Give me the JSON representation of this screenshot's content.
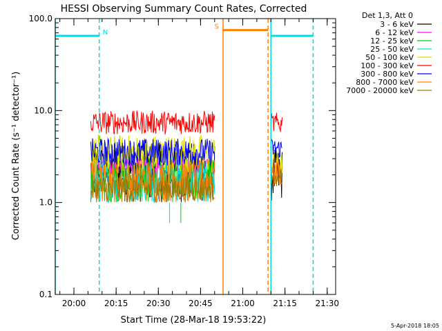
{
  "chart_data": {
    "type": "line",
    "title": "HESSI Observing Summary Count Rates, Corrected",
    "xlabel": "Start Time (28-Mar-18 19:53:22)",
    "ylabel": "Corrected Count Rate (s⁻¹ detector⁻¹)",
    "yscale": "log",
    "ylim": [
      0.1,
      100.0
    ],
    "xlim": [
      "19:53:22",
      "21:33:00"
    ],
    "x_tick_labels": [
      "20:00",
      "20:15",
      "20:30",
      "20:45",
      "21:00",
      "21:15",
      "21:30"
    ],
    "y_tick_labels": [
      "0.1",
      "1.0",
      "10.0",
      "100.0"
    ],
    "legend_title": "Det 1,3, Att 0",
    "legend_position": "right",
    "timestamp": "5-Apr-2018 18:05",
    "flags": [
      {
        "label": "N",
        "color": "#00dddd",
        "start": "19:53:22",
        "end": "20:09",
        "level": 65
      },
      {
        "label": "S",
        "color": "#ff7f00",
        "start": "20:53",
        "end": "21:09",
        "level": 75
      },
      {
        "label": "",
        "color": "#00dddd",
        "start": "21:10",
        "end": "21:25",
        "level": 65
      }
    ],
    "series": [
      {
        "name": "3 - 6 keV",
        "color": "#000000",
        "segments": [
          {
            "start": "20:06",
            "end": "20:50",
            "low": 1.0,
            "high": 4.5
          },
          {
            "start": "21:10",
            "end": "21:14",
            "low": 1.0,
            "high": 4.0
          }
        ]
      },
      {
        "name": "6 - 12 keV",
        "color": "#ff00ff",
        "segments": [
          {
            "start": "20:06",
            "end": "20:50",
            "low": 2.0,
            "high": 3.0
          }
        ]
      },
      {
        "name": "12 - 25 keV",
        "color": "#00cc00",
        "segments": [
          {
            "start": "20:06",
            "end": "20:50",
            "low": 1.0,
            "high": 3.0
          },
          {
            "start": "20:38",
            "end": "20:38",
            "low": 0.6,
            "high": 1.0
          }
        ]
      },
      {
        "name": "25 - 50 keV",
        "color": "#00dddd",
        "segments": [
          {
            "start": "20:06",
            "end": "20:50",
            "low": 1.0,
            "high": 3.0
          },
          {
            "start": "20:34",
            "end": "20:34",
            "low": 0.6,
            "high": 1.0
          }
        ]
      },
      {
        "name": "50 - 100 keV",
        "color": "#dddd00",
        "segments": [
          {
            "start": "20:06",
            "end": "20:50",
            "low": 2.0,
            "high": 5.5
          },
          {
            "start": "21:10",
            "end": "21:14",
            "low": 2.0,
            "high": 3.5
          }
        ]
      },
      {
        "name": "100 - 300 keV",
        "color": "#ff0000",
        "segments": [
          {
            "start": "20:06",
            "end": "20:50",
            "low": 5.5,
            "high": 10.0
          },
          {
            "start": "21:10",
            "end": "21:14",
            "low": 5.5,
            "high": 9.5
          }
        ]
      },
      {
        "name": "300 - 800 keV",
        "color": "#0000ff",
        "segments": [
          {
            "start": "20:06",
            "end": "20:50",
            "low": 2.5,
            "high": 5.0
          },
          {
            "start": "21:10",
            "end": "21:14",
            "low": 3.0,
            "high": 5.0
          }
        ]
      },
      {
        "name": "800 - 7000 keV",
        "color": "#ff8000",
        "segments": [
          {
            "start": "20:06",
            "end": "20:50",
            "low": 1.0,
            "high": 3.0
          },
          {
            "start": "21:10",
            "end": "21:14",
            "low": 1.5,
            "high": 3.0
          }
        ]
      },
      {
        "name": "7000 - 20000 keV",
        "color": "#a07800",
        "segments": [
          {
            "start": "20:06",
            "end": "20:50",
            "low": 1.0,
            "high": 2.0
          },
          {
            "start": "21:10",
            "end": "21:14",
            "low": 1.5,
            "high": 2.0
          }
        ]
      }
    ],
    "vertical_lines": [
      {
        "time": "19:53:22",
        "color": "#00dddd",
        "style": "solid"
      },
      {
        "time": "20:09",
        "color": "#00dddd",
        "style": "dashed"
      },
      {
        "time": "20:53",
        "color": "#ff7f00",
        "style": "solid"
      },
      {
        "time": "21:09",
        "color": "#ff7f00",
        "style": "dashed"
      },
      {
        "time": "21:10",
        "color": "#00dddd",
        "style": "solid"
      },
      {
        "time": "21:25",
        "color": "#00dddd",
        "style": "dashed"
      }
    ]
  }
}
